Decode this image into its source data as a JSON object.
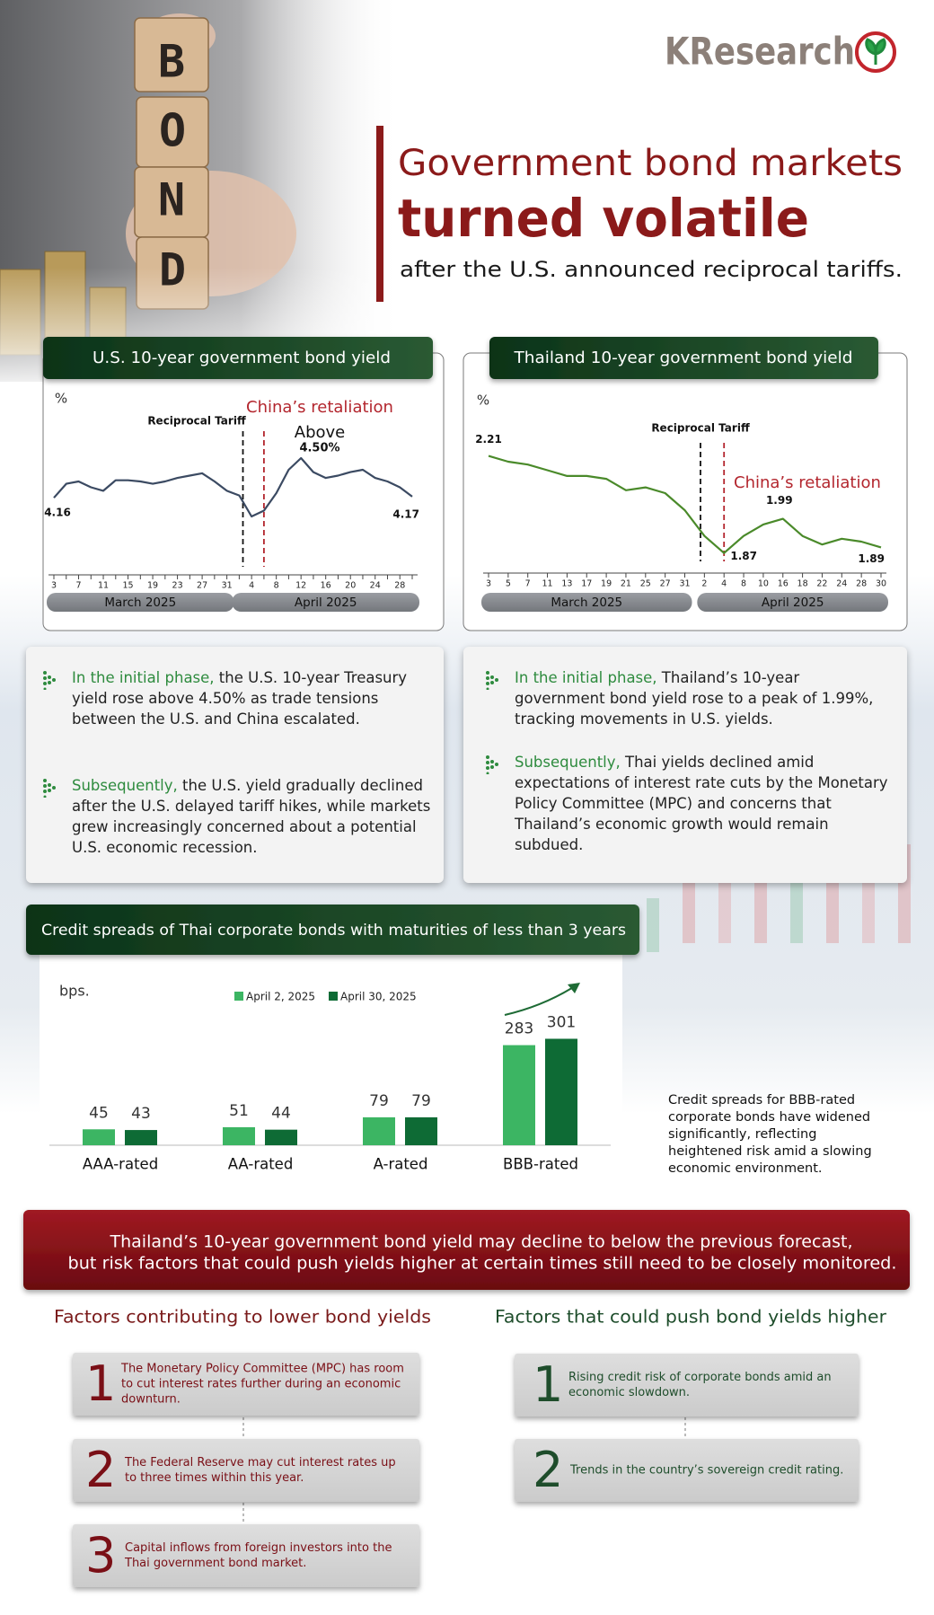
{
  "header": {
    "brand": "KResearch",
    "photo_letters": [
      "B",
      "O",
      "N",
      "D"
    ],
    "title_line1": "Government bond markets",
    "title_line2": "turned volatile",
    "subtitle": "after the U.S. announced reciprocal tariffs."
  },
  "chart_data": [
    {
      "type": "line",
      "title": "U.S. 10-year government bond yield",
      "y_label": "%",
      "categories": [
        "3",
        null,
        "7",
        null,
        "11",
        null,
        "15",
        null,
        "19",
        null,
        "23",
        null,
        "27",
        null,
        "31",
        null,
        "4",
        null,
        "8",
        null,
        "12",
        null,
        "16",
        null,
        "20",
        null,
        "24",
        null,
        "28",
        null
      ],
      "month_labels": [
        "March 2025",
        "April 2025"
      ],
      "values": [
        4.16,
        4.28,
        4.3,
        4.25,
        4.22,
        4.31,
        4.31,
        4.3,
        4.28,
        4.3,
        4.33,
        4.35,
        4.37,
        4.3,
        4.22,
        4.18,
        4.0,
        4.05,
        4.2,
        4.4,
        4.5,
        4.38,
        4.33,
        4.35,
        4.38,
        4.4,
        4.33,
        4.3,
        4.25,
        4.17
      ],
      "color": "#3b4a62",
      "ylim": [
        3.5,
        4.7
      ],
      "events": [
        "Reciprocal Tariff",
        "China’s retaliation"
      ],
      "event_colors": [
        "#111111",
        "#b3262e"
      ],
      "peak_label": [
        "Above",
        "4.50%"
      ]
    },
    {
      "type": "line",
      "title": "Thailand 10-year government bond yield",
      "y_label": "%",
      "categories": [
        "3",
        "5",
        "7",
        "11",
        "13",
        "17",
        "19",
        "21",
        "25",
        "27",
        "31",
        "2",
        "4",
        "8",
        "10",
        "16",
        "18",
        "22",
        "24",
        "28",
        "30"
      ],
      "month_labels": [
        "March 2025",
        "April 2025"
      ],
      "values": [
        2.21,
        2.19,
        2.18,
        2.16,
        2.14,
        2.14,
        2.13,
        2.09,
        2.1,
        2.08,
        2.02,
        1.93,
        1.87,
        1.93,
        1.97,
        1.99,
        1.93,
        1.9,
        1.92,
        1.91,
        1.89
      ],
      "color": "#4a8a2a",
      "ylim": [
        1.8,
        2.3
      ],
      "events": [
        "Reciprocal Tariff",
        "China’s retaliation"
      ],
      "event_colors": [
        "#111111",
        "#b3262e"
      ]
    },
    {
      "type": "bar",
      "title": "Credit spreads of Thai corporate bonds with maturities of less than 3 years",
      "y_label": "bps.",
      "categories": [
        "AAA-rated",
        "AA-rated",
        "A-rated",
        "BBB-rated"
      ],
      "series": [
        {
          "name": "April 2, 2025",
          "color": "#3cb563",
          "values": [
            45,
            51,
            79,
            283
          ]
        },
        {
          "name": "April 30, 2025",
          "color": "#0e6b35",
          "values": [
            43,
            44,
            79,
            301
          ]
        }
      ],
      "ylim": [
        0,
        320
      ]
    }
  ],
  "panels": [
    {
      "bullets": [
        {
          "lead": "In the initial phase,",
          "text": "the U.S. 10-year Treasury yield rose above 4.50% as trade tensions between the U.S. and China escalated."
        },
        {
          "lead": "Subsequently,",
          "text": "the U.S. yield gradually declined after the U.S. delayed tariff hikes, while markets grew increasingly concerned about a potential U.S. economic recession."
        }
      ]
    },
    {
      "bullets": [
        {
          "lead": "In the initial phase,",
          "text": "Thailand’s 10-year government bond yield rose to a peak of 1.99%, tracking movements in U.S. yields."
        },
        {
          "lead": "Subsequently,",
          "text": "Thai yields declined amid expectations of interest rate cuts by the Monetary Policy Committee (MPC) and concerns that Thailand’s economic growth would remain subdued."
        }
      ]
    }
  ],
  "credit_note": "Credit spreads for BBB-rated corporate bonds have widened significantly, reflecting heightened risk amid a slowing economic environment.",
  "banner": {
    "lines": [
      "Thailand’s 10-year government bond yield may decline to below the previous forecast,",
      "but risk factors that could push yields higher at certain times still need to be closely monitored."
    ]
  },
  "factors": [
    {
      "heading": "Factors contributing to lower bond yields",
      "items": [
        {
          "number": 1,
          "text": "The Monetary Policy Committee (MPC) has room to cut interest rates further during an economic downturn."
        },
        {
          "number": 2,
          "text": "The Federal Reserve may cut interest rates up to three times within this year."
        },
        {
          "number": 3,
          "text": "Capital inflows from foreign investors into the Thai government bond market."
        }
      ]
    },
    {
      "heading": "Factors that could push bond yields higher",
      "items": [
        {
          "number": 1,
          "text": "Rising credit risk of corporate bonds amid an economic slowdown."
        },
        {
          "number": 2,
          "text": "Trends in the country’s sovereign credit rating."
        }
      ]
    }
  ]
}
